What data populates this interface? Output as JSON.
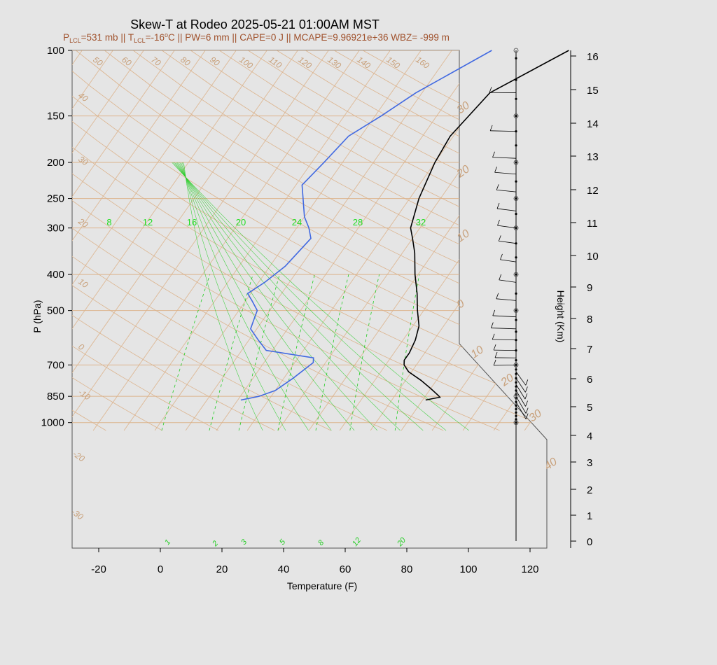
{
  "header": {
    "title": "Skew-T at Rodeo 2025-05-21 01:00AM MST",
    "sub": {
      "p_a": "P",
      "p_sub": "LCL",
      "p_b": "=531 mb || T",
      "t_sub": "LCL",
      "t_b": "=-16",
      "t_sup": "o",
      "t_c": "C || PW=6 mm || CAPE=0 J || MCAPE=9.96921e+36 WBZ= -999 m"
    }
  },
  "colors": {
    "background": "#e5e5e5",
    "isotherm": "#dcb38c",
    "isobar": "#dcb38c",
    "mixing_ratio": "#22cc22",
    "moist_adiabat": "#22cc22",
    "temperature": "#000000",
    "dewpoint": "#4169e1"
  },
  "chart_data": {
    "type": "skew-t",
    "title": "Skew-T at Rodeo 2025-05-21 01:00AM MST",
    "xlabel": "Temperature (F)",
    "ylabel": "P (hPa)",
    "y2label": "Height (Km)",
    "xlim": [
      -28,
      125
    ],
    "pressure_range": [
      100,
      1050
    ],
    "x_ticks": [
      -20,
      0,
      20,
      40,
      60,
      80,
      100,
      120
    ],
    "y_ticks": [
      100,
      150,
      200,
      250,
      300,
      400,
      500,
      700,
      850,
      1000
    ],
    "height_ticks": [
      0,
      1,
      2,
      3,
      4,
      5,
      6,
      7,
      8,
      9,
      10,
      11,
      12,
      13,
      14,
      15,
      16
    ],
    "dry_adiabat_labels": [
      -30,
      -20,
      -10,
      0,
      10,
      20,
      30,
      40,
      50,
      60,
      70,
      80,
      90,
      100,
      110,
      120,
      130,
      140,
      150,
      160
    ],
    "isotherm_labels": [
      30,
      20,
      10,
      0,
      10,
      20,
      30,
      40
    ],
    "mixing_ratio_labels": [
      "1",
      "2",
      "3",
      "5",
      "8",
      "12",
      "20"
    ],
    "moist_adiabat_labels": [
      "8",
      "12",
      "16",
      "20",
      "24",
      "28",
      "32"
    ],
    "temperature": [
      {
        "p": 870,
        "t": 81
      },
      {
        "p": 862,
        "t": 83
      },
      {
        "p": 855,
        "t": 85
      },
      {
        "p": 845,
        "t": 84
      },
      {
        "p": 810,
        "t": 80
      },
      {
        "p": 770,
        "t": 75
      },
      {
        "p": 730,
        "t": 69
      },
      {
        "p": 700,
        "t": 66
      },
      {
        "p": 680,
        "t": 65
      },
      {
        "p": 650,
        "t": 65
      },
      {
        "p": 600,
        "t": 64
      },
      {
        "p": 550,
        "t": 62
      },
      {
        "p": 500,
        "t": 58
      },
      {
        "p": 450,
        "t": 54
      },
      {
        "p": 400,
        "t": 49
      },
      {
        "p": 350,
        "t": 44
      },
      {
        "p": 320,
        "t": 40
      },
      {
        "p": 300,
        "t": 37
      },
      {
        "p": 250,
        "t": 33
      },
      {
        "p": 200,
        "t": 30
      },
      {
        "p": 170,
        "t": 29
      },
      {
        "p": 130,
        "t": 32
      },
      {
        "p": 100,
        "t": 48
      }
    ],
    "dewpoint": [
      {
        "p": 870,
        "t": 21
      },
      {
        "p": 850,
        "t": 26
      },
      {
        "p": 820,
        "t": 30
      },
      {
        "p": 760,
        "t": 33
      },
      {
        "p": 690,
        "t": 36
      },
      {
        "p": 670,
        "t": 35
      },
      {
        "p": 640,
        "t": 18
      },
      {
        "p": 600,
        "t": 13
      },
      {
        "p": 560,
        "t": 8
      },
      {
        "p": 530,
        "t": 7
      },
      {
        "p": 500,
        "t": 6
      },
      {
        "p": 470,
        "t": 2
      },
      {
        "p": 450,
        "t": -1
      },
      {
        "p": 420,
        "t": 2
      },
      {
        "p": 380,
        "t": 5
      },
      {
        "p": 320,
        "t": 7
      },
      {
        "p": 300,
        "t": 4
      },
      {
        "p": 280,
        "t": 0
      },
      {
        "p": 260,
        "t": -3
      },
      {
        "p": 230,
        "t": -8
      },
      {
        "p": 200,
        "t": -6
      },
      {
        "p": 170,
        "t": -4
      },
      {
        "p": 150,
        "t": 2
      },
      {
        "p": 130,
        "t": 8
      },
      {
        "p": 100,
        "t": 23
      }
    ]
  }
}
